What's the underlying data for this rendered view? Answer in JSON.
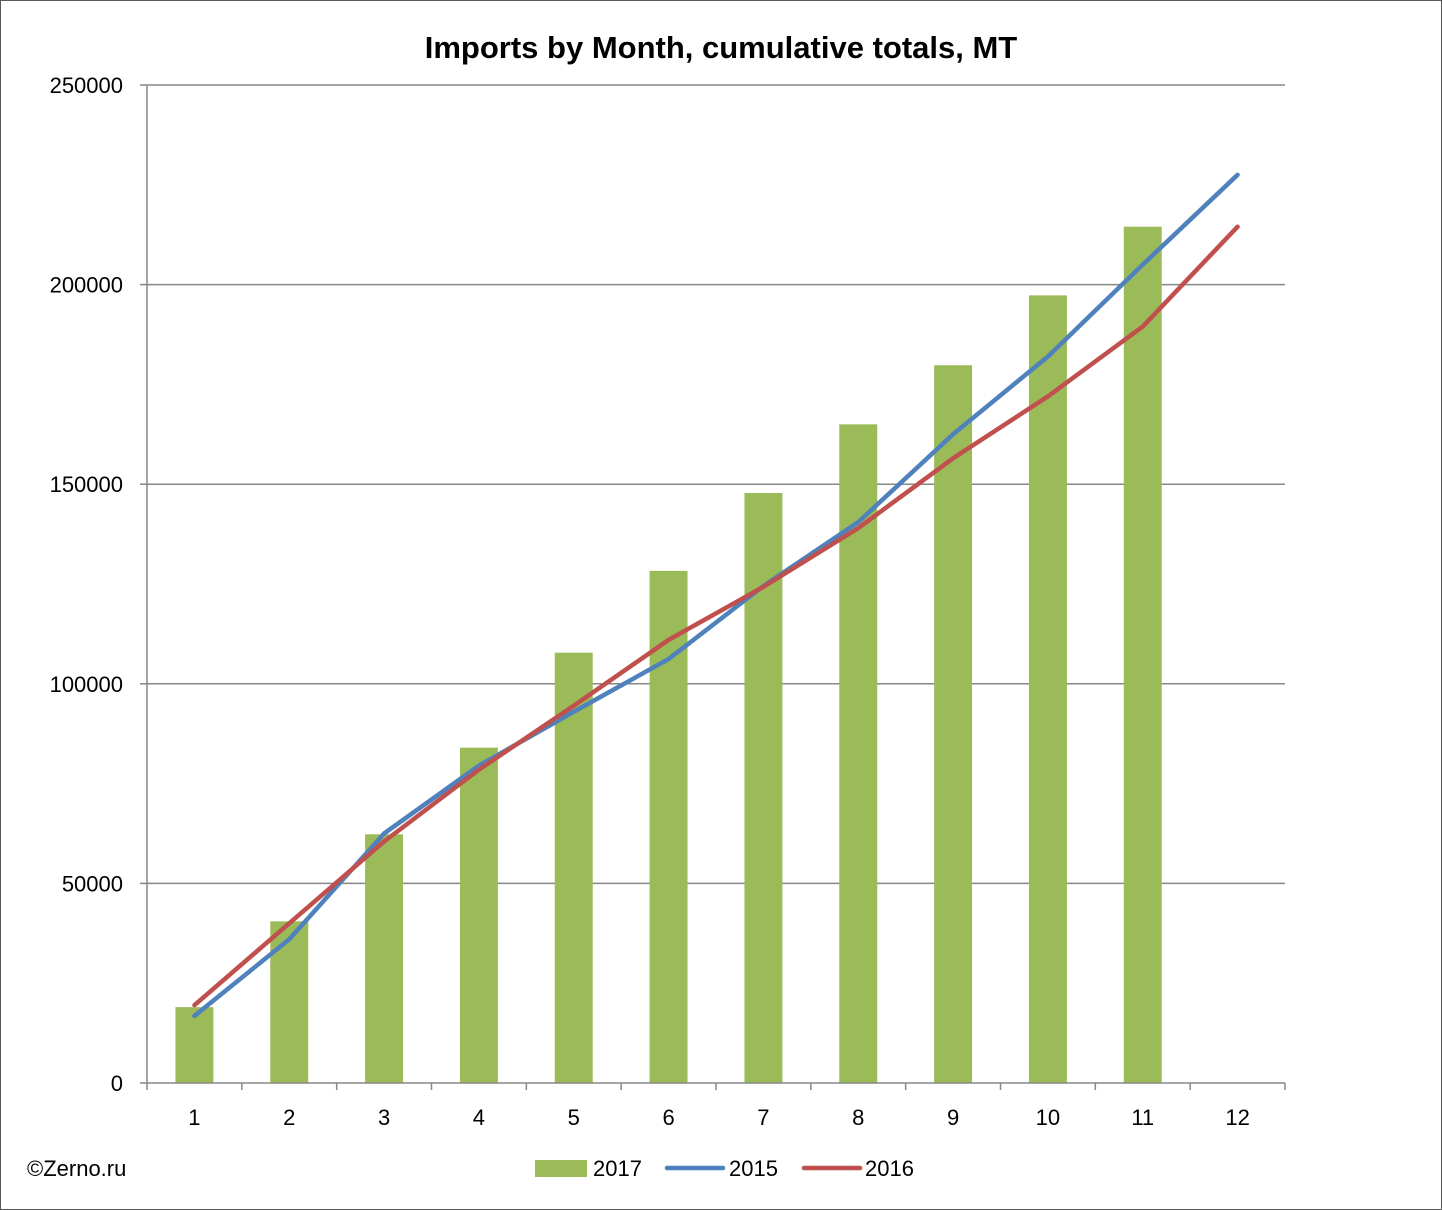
{
  "credit": "©Zerno.ru",
  "chart_data": {
    "type": "bar",
    "title": "Imports by Month, cumulative totals, MT",
    "xlabel": "",
    "ylabel": "",
    "categories": [
      "1",
      "2",
      "3",
      "4",
      "5",
      "6",
      "7",
      "8",
      "9",
      "10",
      "11",
      "12"
    ],
    "ylim": [
      0,
      250000
    ],
    "yticks": [
      0,
      50000,
      100000,
      150000,
      200000,
      250000
    ],
    "grid": true,
    "legend_position": "bottom",
    "series": [
      {
        "name": "2017",
        "kind": "bar",
        "color": "#9BBB59",
        "values": [
          19000,
          40500,
          62300,
          84000,
          107800,
          128300,
          147800,
          165000,
          179800,
          197300,
          214500,
          null
        ]
      },
      {
        "name": "2015",
        "kind": "line",
        "color": "#4F81BD",
        "values": [
          16800,
          36000,
          62500,
          79500,
          93000,
          106200,
          124500,
          140500,
          162500,
          182000,
          205000,
          227500
        ]
      },
      {
        "name": "2016",
        "kind": "line",
        "color": "#C0504D",
        "values": [
          19500,
          40000,
          60500,
          78500,
          94500,
          111000,
          124300,
          139000,
          156500,
          172000,
          189500,
          214500
        ]
      }
    ]
  }
}
